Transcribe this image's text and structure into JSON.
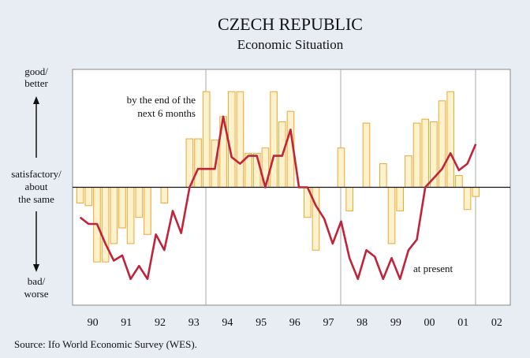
{
  "chart_data": {
    "type": "bar+line",
    "title": "CZECH REPUBLIC",
    "subtitle": "Economic Situation",
    "source": "Source: Ifo World Economic Survey (WES).",
    "y_labels": {
      "top": [
        "good/",
        "better"
      ],
      "middle": [
        "satisfactory/",
        "about",
        "the same"
      ],
      "bottom": [
        "bad/",
        "worse"
      ]
    },
    "annotations": {
      "expectation": [
        "by the end of the",
        "next 6 months"
      ],
      "present": "at present"
    },
    "xlim": [
      1989.9,
      2002.9
    ],
    "ylim": [
      -9,
      9
    ],
    "xticks": [
      {
        "value": 1990.5,
        "label": "90"
      },
      {
        "value": 1991.5,
        "label": "91"
      },
      {
        "value": 1992.5,
        "label": "92"
      },
      {
        "value": 1993.5,
        "label": "93"
      },
      {
        "value": 1994.5,
        "label": "94"
      },
      {
        "value": 1995.5,
        "label": "95"
      },
      {
        "value": 1996.5,
        "label": "96"
      },
      {
        "value": 1997.5,
        "label": "97"
      },
      {
        "value": 1998.5,
        "label": "98"
      },
      {
        "value": 1999.5,
        "label": "99"
      },
      {
        "value": 2000.5,
        "label": "00"
      },
      {
        "value": 2001.5,
        "label": "01"
      },
      {
        "value": 2002.5,
        "label": "02"
      }
    ],
    "x": [
      1990.125,
      1990.375,
      1990.625,
      1990.875,
      1991.125,
      1991.375,
      1991.625,
      1991.875,
      1992.125,
      1992.375,
      1992.625,
      1992.875,
      1993.125,
      1993.375,
      1993.625,
      1993.875,
      1994.125,
      1994.375,
      1994.625,
      1994.875,
      1995.125,
      1995.375,
      1995.625,
      1995.875,
      1996.125,
      1996.375,
      1996.625,
      1996.875,
      1997.125,
      1997.375,
      1997.625,
      1997.875,
      1998.125,
      1998.375,
      1998.625,
      1998.875,
      1999.125,
      1999.375,
      1999.625,
      1999.875,
      2000.125,
      2000.375,
      2000.625,
      2000.875,
      2001.125,
      2001.375,
      2001.625,
      2001.875
    ],
    "series": [
      {
        "type": "bar",
        "color": "#fdf2cc",
        "edge": "#eda632",
        "values": [
          -1.2,
          -1.4,
          -5.7,
          -5.7,
          -4.3,
          -3.1,
          -4.3,
          -2.3,
          -3.6,
          0,
          -1.2,
          0,
          0,
          3.7,
          3.7,
          7.3,
          3.6,
          5.4,
          7.3,
          7.3,
          2.6,
          2.6,
          3.0,
          7.3,
          5.0,
          5.8,
          0,
          -2.3,
          -4.8,
          0,
          0,
          3.0,
          -1.8,
          0,
          4.9,
          0,
          1.8,
          -4.3,
          -1.8,
          2.4,
          4.9,
          5.2,
          5.0,
          6.6,
          7.3,
          0.9,
          -1.7,
          -0.7
        ]
      },
      {
        "type": "line",
        "color": "#c0243a",
        "values": [
          -2.3,
          -2.8,
          -2.8,
          -4.3,
          -5.6,
          -5.2,
          -7.0,
          -6.0,
          -7.0,
          -3.6,
          -4.8,
          -1.8,
          -3.5,
          0,
          1.4,
          1.4,
          1.4,
          5.4,
          2.3,
          1.8,
          2.4,
          2.4,
          0,
          2.4,
          2.4,
          4.4,
          0,
          0,
          -1.4,
          -2.4,
          -4.3,
          -2.6,
          -5.4,
          -7.0,
          -4.8,
          -5.3,
          -7.0,
          -5.4,
          -7.0,
          -4.8,
          -4.0,
          0,
          0.7,
          1.4,
          2.6,
          1.3,
          1.8,
          3.3
        ]
      }
    ]
  }
}
